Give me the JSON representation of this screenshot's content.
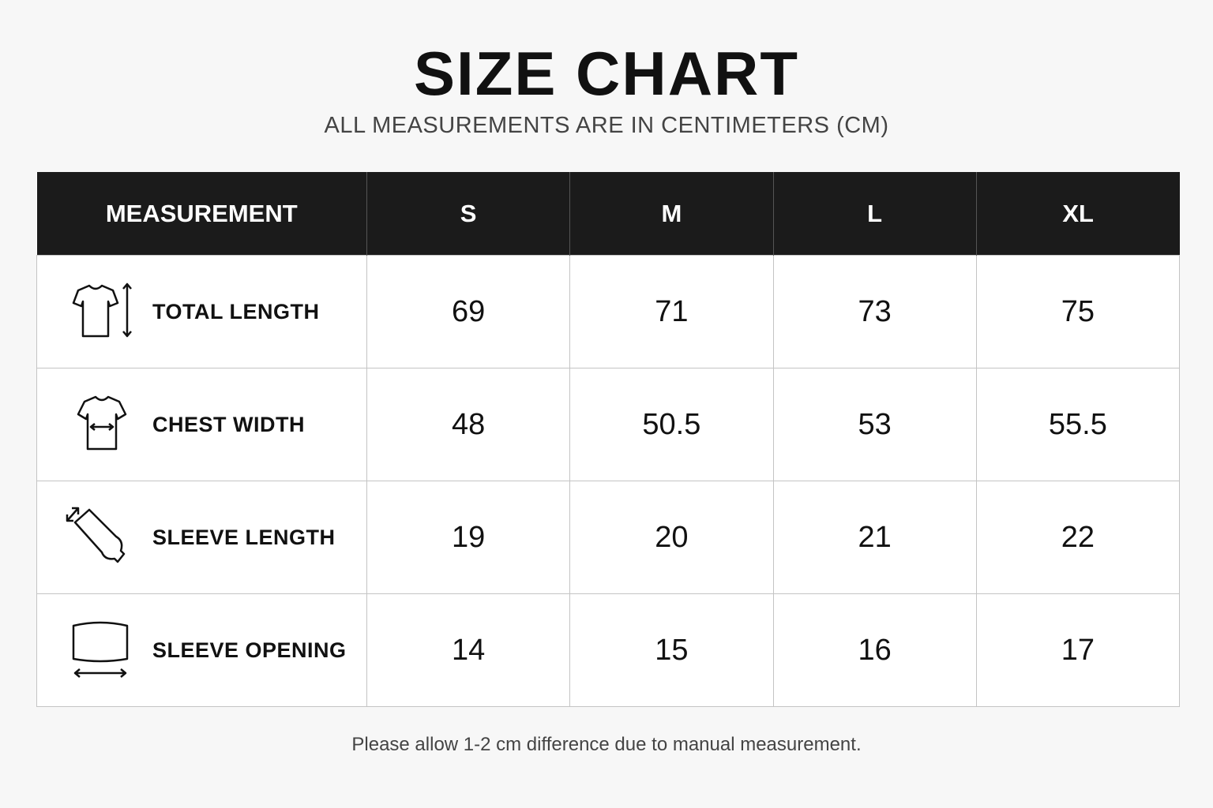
{
  "header": {
    "title": "SIZE CHART",
    "subtitle": "ALL MEASUREMENTS ARE IN CENTIMETERS (CM)"
  },
  "table": {
    "columns": [
      "MEASUREMENT",
      "S",
      "M",
      "L",
      "XL"
    ],
    "rows": [
      [
        "TOTAL LENGTH",
        69,
        71,
        73,
        75
      ],
      [
        "CHEST WIDTH",
        48,
        50.5,
        53,
        55.5
      ],
      [
        "SLEEVE LENGTH",
        19,
        20,
        21,
        22
      ],
      [
        "SLEEVE OPENING",
        14,
        15,
        16,
        17
      ]
    ]
  },
  "footer": {
    "note": "Please allow 1-2 cm difference due to manual measurement."
  }
}
